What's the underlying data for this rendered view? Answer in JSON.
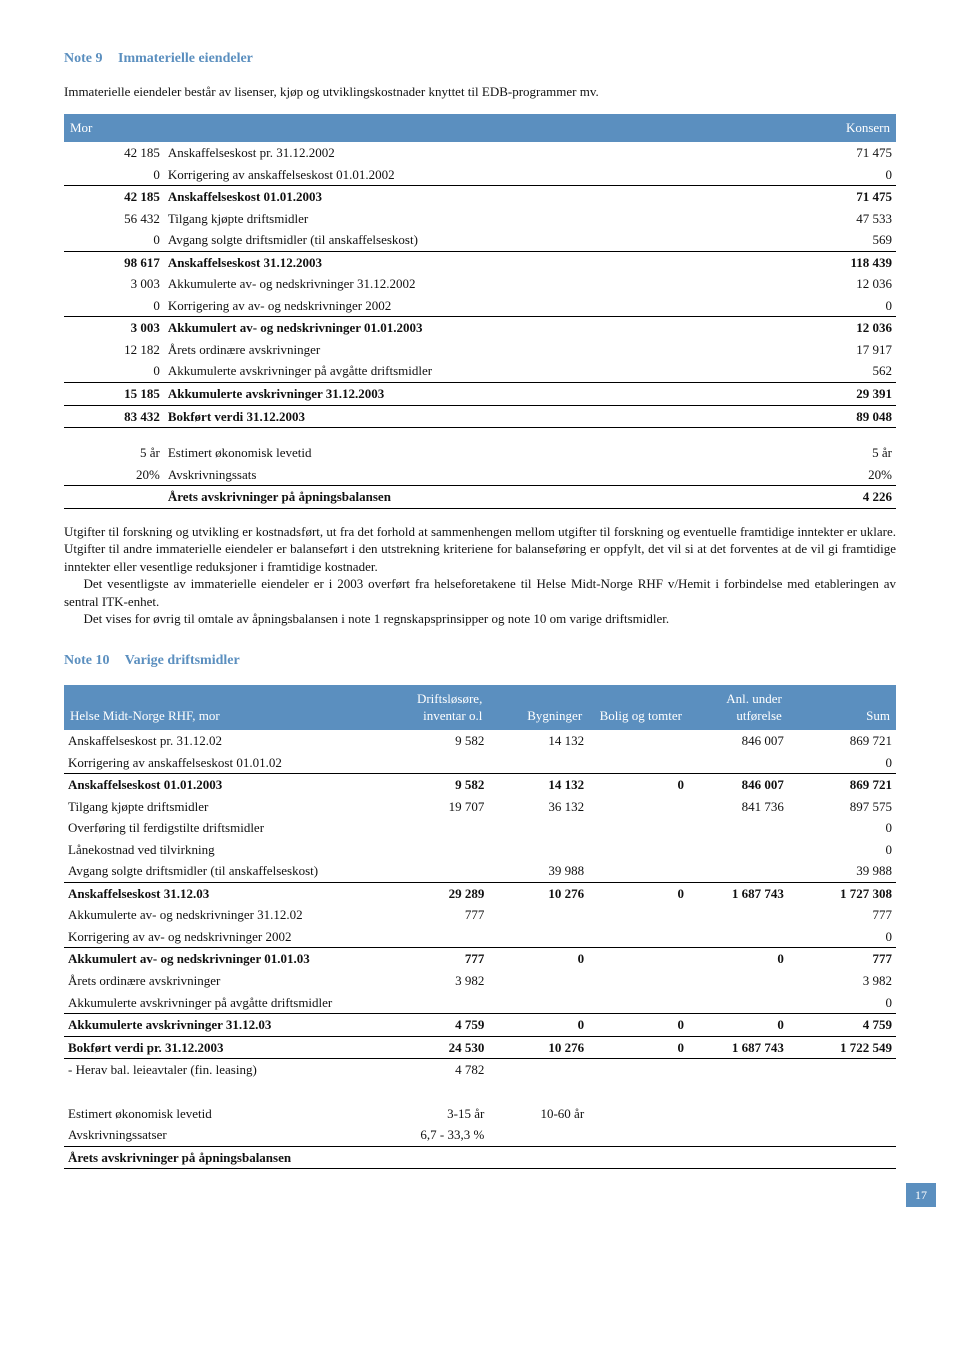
{
  "note9": {
    "heading_num": "Note 9",
    "heading_title": "Immaterielle eiendeler",
    "intro": "Immaterielle eiendeler består av lisenser, kjøp og utviklingskostnader knyttet til EDB-programmer mv.",
    "header_left": "Mor",
    "header_right": "Konsern",
    "rows": [
      {
        "l": "42 185",
        "label": "Anskaffelseskost pr. 31.12.2002",
        "r": "71 475",
        "bold": false,
        "underline": false
      },
      {
        "l": "0",
        "label": "Korrigering av anskaffelseskost 01.01.2002",
        "r": "0",
        "bold": false,
        "underline": true
      },
      {
        "l": "42 185",
        "label": "Anskaffelseskost 01.01.2003",
        "r": "71 475",
        "bold": true,
        "underline": false
      },
      {
        "l": "56 432",
        "label": "Tilgang kjøpte driftsmidler",
        "r": "47 533",
        "bold": false,
        "underline": false
      },
      {
        "l": "0",
        "label": "Avgang solgte driftsmidler (til anskaffelseskost)",
        "r": "569",
        "bold": false,
        "underline": true
      },
      {
        "l": "98 617",
        "label": "Anskaffelseskost 31.12.2003",
        "r": "118 439",
        "bold": true,
        "underline": false
      },
      {
        "l": "3 003",
        "label": "Akkumulerte av- og nedskrivninger 31.12.2002",
        "r": "12 036",
        "bold": false,
        "underline": false
      },
      {
        "l": "0",
        "label": "Korrigering av av- og nedskrivninger 2002",
        "r": "0",
        "bold": false,
        "underline": true
      },
      {
        "l": "3 003",
        "label": "Akkumulert av- og nedskrivninger 01.01.2003",
        "r": "12 036",
        "bold": true,
        "underline": false
      },
      {
        "l": "12 182",
        "label": "Årets ordinære avskrivninger",
        "r": "17 917",
        "bold": false,
        "underline": false
      },
      {
        "l": "0",
        "label": "Akkumulerte avskrivninger på avgåtte driftsmidler",
        "r": "562",
        "bold": false,
        "underline": true
      },
      {
        "l": "15 185",
        "label": "Akkumulerte avskrivninger 31.12.2003",
        "r": "29 391",
        "bold": true,
        "underline": true
      },
      {
        "l": "83 432",
        "label": "Bokført verdi 31.12.2003",
        "r": "89 048",
        "bold": true,
        "underline": true
      }
    ],
    "rows2": [
      {
        "l": "5 år",
        "label": "Estimert økonomisk levetid",
        "r": "5 år",
        "bold": false,
        "underline": false
      },
      {
        "l": "20%",
        "label": "Avskrivningssats",
        "r": "20%",
        "bold": false,
        "underline": true
      },
      {
        "l": "",
        "label": "Årets avskrivninger på åpningsbalansen",
        "r": "4 226",
        "bold": true,
        "underline": true
      }
    ],
    "para1": "Utgifter til forskning og utvikling er kostnadsført, ut fra det forhold at sammenhengen mellom utgifter til forskning og eventuelle framtidige inntekter er uklare. Utgifter til andre immaterielle eiendeler er balanseført i den utstrekning kriteriene for balanseføring er oppfylt, det vil si at det forventes at de vil gi framtidige inntekter eller vesentlige reduksjoner i framtidige kostnader.",
    "para2": "Det vesentligste av immaterielle eiendeler er i 2003 overført fra helseforetakene til Helse Midt-Norge RHF v/Hemit i forbindelse med etableringen av sentral ITK-enhet.",
    "para3": "Det vises for øvrig til omtale av åpningsbalansen i note 1 regnskapsprinsipper og note 10 om varige driftsmidler."
  },
  "note10": {
    "heading_num": "Note 10",
    "heading_title": "Varige driftsmidler",
    "headers": [
      "Helse Midt-Norge RHF, mor",
      "Driftsløsøre, inventar o.l",
      "Bygninger",
      "Bolig og tomter",
      "Anl. under utførelse",
      "Sum"
    ],
    "rows": [
      {
        "c": [
          "Anskaffelseskost pr. 31.12.02",
          "9 582",
          "14 132",
          "",
          "846 007",
          "869 721"
        ],
        "bold": false,
        "underline": false
      },
      {
        "c": [
          "Korrigering av anskaffelseskost 01.01.02",
          "",
          "",
          "",
          "",
          "0"
        ],
        "bold": false,
        "underline": true
      },
      {
        "c": [
          "Anskaffelseskost 01.01.2003",
          "9 582",
          "14 132",
          "0",
          "846 007",
          "869 721"
        ],
        "bold": true,
        "underline": false
      },
      {
        "c": [
          "Tilgang kjøpte driftsmidler",
          "19 707",
          "36 132",
          "",
          "841 736",
          "897 575"
        ],
        "bold": false,
        "underline": false
      },
      {
        "c": [
          "Overføring til ferdigstilte driftsmidler",
          "",
          "",
          "",
          "",
          "0"
        ],
        "bold": false,
        "underline": false
      },
      {
        "c": [
          "Lånekostnad ved tilvirkning",
          "",
          "",
          "",
          "",
          "0"
        ],
        "bold": false,
        "underline": false
      },
      {
        "c": [
          "Avgang solgte driftsmidler (til anskaffelseskost)",
          "",
          "39 988",
          "",
          "",
          "39 988"
        ],
        "bold": false,
        "underline": true
      },
      {
        "c": [
          "Anskaffelseskost 31.12.03",
          "29 289",
          "10 276",
          "0",
          "1 687 743",
          "1 727 308"
        ],
        "bold": true,
        "underline": false
      },
      {
        "c": [
          "Akkumulerte av- og nedskrivninger 31.12.02",
          "777",
          "",
          "",
          "",
          "777"
        ],
        "bold": false,
        "underline": false
      },
      {
        "c": [
          "Korrigering av av- og nedskrivninger 2002",
          "",
          "",
          "",
          "",
          "0"
        ],
        "bold": false,
        "underline": true
      },
      {
        "c": [
          "Akkumulert av- og nedskrivninger 01.01.03",
          "777",
          "0",
          "",
          "0",
          "777"
        ],
        "bold": true,
        "underline": false
      },
      {
        "c": [
          "Årets ordinære avskrivninger",
          "3 982",
          "",
          "",
          "",
          "3 982"
        ],
        "bold": false,
        "underline": false
      },
      {
        "c": [
          "Akkumulerte avskrivninger på avgåtte driftsmidler",
          "",
          "",
          "",
          "",
          "0"
        ],
        "bold": false,
        "underline": true
      },
      {
        "c": [
          "Akkumulerte avskrivninger 31.12.03",
          "4 759",
          "0",
          "0",
          "0",
          "4 759"
        ],
        "bold": true,
        "underline": true
      },
      {
        "c": [
          "Bokført verdi pr. 31.12.2003",
          "24 530",
          "10 276",
          "0",
          "1 687 743",
          "1 722 549"
        ],
        "bold": true,
        "underline": true
      },
      {
        "c": [
          "- Herav bal. leieavtaler (fin. leasing)",
          "4 782",
          "",
          "",
          "",
          ""
        ],
        "bold": false,
        "underline": false
      }
    ],
    "rows2": [
      {
        "c": [
          "Estimert økonomisk levetid",
          "3-15 år",
          "10-60 år",
          "",
          "",
          ""
        ],
        "bold": false,
        "underline": false,
        "top": true
      },
      {
        "c": [
          "Avskrivningssatser",
          "6,7 - 33,3 %",
          "",
          "",
          "",
          ""
        ],
        "bold": false,
        "underline": true
      },
      {
        "c": [
          "Årets avskrivninger på åpningsbalansen",
          "",
          "",
          "",
          "",
          ""
        ],
        "bold": true,
        "underline": true
      }
    ]
  },
  "page_number": "17"
}
